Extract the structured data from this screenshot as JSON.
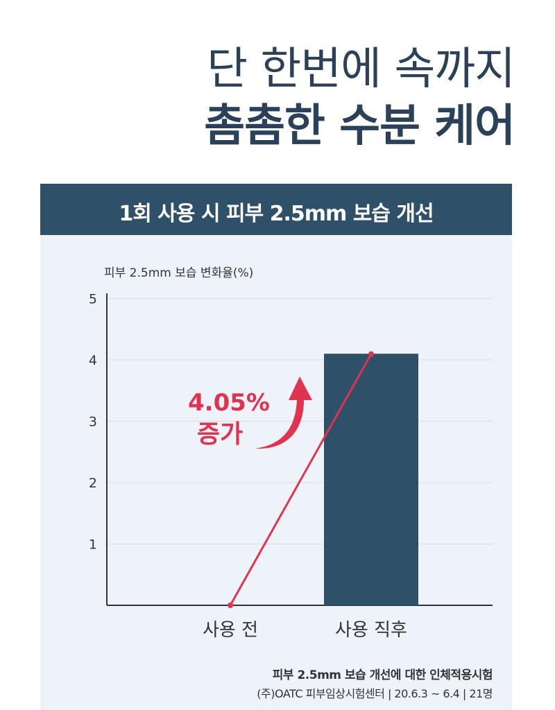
{
  "headline": {
    "line1": "단 한번에 속까지",
    "line2": "촘촘한 수분 케어"
  },
  "banner": {
    "title": "1회 사용 시 피부 2.5mm 보습 개선"
  },
  "chart_data": {
    "type": "bar",
    "ylabel": "피부 2.5mm 보습 변화율(%)",
    "ylim": [
      0,
      5
    ],
    "yticks": [
      "1",
      "2",
      "3",
      "4",
      "5"
    ],
    "categories": [
      "사용 전",
      "사용 직후"
    ],
    "values": [
      0,
      4.1
    ],
    "grid": true,
    "annotation": {
      "value": "4.05%",
      "label": "증가"
    },
    "colors": {
      "bar": "#2f5069",
      "line": "#e0334f",
      "annotation": "#e0334f",
      "grid": "#d8dee6",
      "axis": "#333333"
    }
  },
  "caption": {
    "line1": "피부 2.5mm 보습 개선에 대한 인체적용시험",
    "line2": "(주)OATC 피부임상시험센터 | 20.6.3 ~ 6.4 | 21명"
  }
}
